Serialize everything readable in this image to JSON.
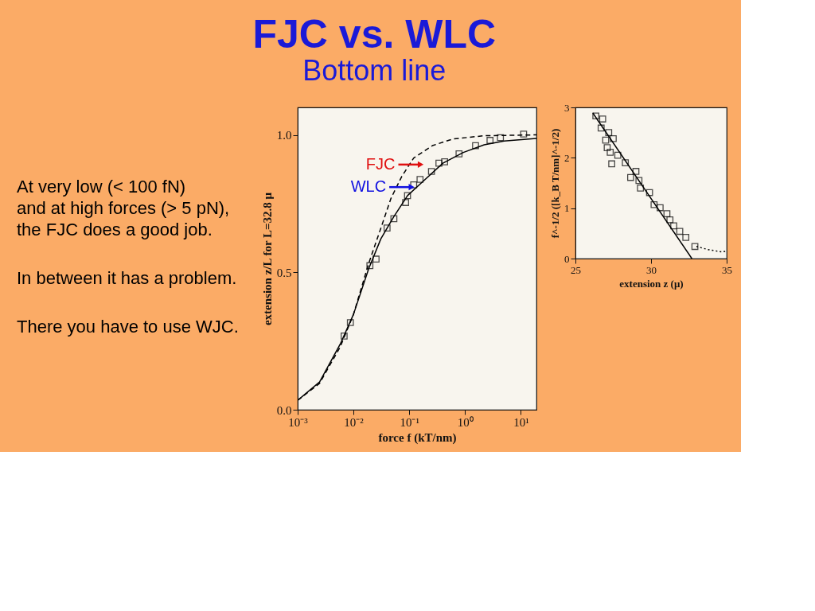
{
  "chart_data": [
    {
      "type": "scatter",
      "title": "FJC vs. WLC",
      "subtitle": "Bottom line",
      "xlabel": "force f (kT/nm)",
      "ylabel": "extension z/L  for  L=32.8 μ",
      "log": "x",
      "xlim": [
        0.001,
        19
      ],
      "xticks": [
        {
          "value": 0.001,
          "label": "10⁻³"
        },
        {
          "value": 0.01,
          "label": "10⁻²"
        },
        {
          "value": 0.1,
          "label": "10⁻¹"
        },
        {
          "value": 1,
          "label": "10⁰"
        },
        {
          "value": 10,
          "label": "10¹"
        }
      ],
      "ylim": [
        0,
        1.1
      ],
      "yticks": [
        {
          "value": 0,
          "label": "0.0"
        },
        {
          "value": 0.5,
          "label": "0.5"
        },
        {
          "value": 1,
          "label": "1.0"
        }
      ],
      "annotations": [
        "At very low (< 100 fN)\nand at high forces (> 5 pN),\nthe FJC does a good job.",
        "In between it has a problem.",
        "There you have to use WJC.",
        {
          "text": "FJC",
          "x": 0.16,
          "y": 0.892
        },
        {
          "text": "WLC",
          "x": 0.11,
          "y": 0.81
        }
      ],
      "series": [
        {
          "marker": "square",
          "color": "#000000",
          "x": [
            0.0068,
            0.0088,
            0.0197,
            0.0254,
            0.04,
            0.053,
            0.086,
            0.093,
            0.12,
            0.156,
            0.25,
            0.34,
            0.43,
            0.78,
            1.54,
            2.8,
            4.3,
            11.2
          ],
          "values": [
            0.268,
            0.317,
            0.524,
            0.548,
            0.661,
            0.695,
            0.754,
            0.779,
            0.818,
            0.838,
            0.867,
            0.897,
            0.902,
            0.931,
            0.961,
            0.98,
            0.99,
            1.003
          ]
        },
        {
          "type": "line",
          "line_style": "solid",
          "color": "#000000",
          "x": [
            0.001,
            0.00247,
            0.0058,
            0.01,
            0.0188,
            0.031,
            0.052,
            0.093,
            0.17,
            0.4,
            0.93,
            2.2,
            5.0,
            19
          ],
          "values": [
            0.034,
            0.101,
            0.239,
            0.347,
            0.514,
            0.622,
            0.7,
            0.779,
            0.828,
            0.897,
            0.936,
            0.964,
            0.978,
            0.987
          ]
        },
        {
          "type": "line",
          "line_style": "dashed",
          "color": "#000000",
          "x": [
            0.001,
            0.00247,
            0.0058,
            0.01,
            0.0188,
            0.031,
            0.047,
            0.073,
            0.12,
            0.26,
            0.6,
            2.2,
            19
          ],
          "values": [
            0.034,
            0.096,
            0.229,
            0.347,
            0.533,
            0.661,
            0.769,
            0.848,
            0.916,
            0.961,
            0.985,
            0.997,
            1.0
          ]
        }
      ]
    },
    {
      "type": "scatter",
      "xlabel": "extension z  (μ)",
      "ylabel": "f^-1/2  ([k_B T/nm]^-1/2)",
      "xlim": [
        25,
        35
      ],
      "xticks": [
        25,
        30,
        35
      ],
      "ylim": [
        0,
        3
      ],
      "yticks": [
        0,
        1,
        2,
        3
      ],
      "series": [
        {
          "marker": "square",
          "color": "#000000",
          "x": [
            26.35,
            26.8,
            26.7,
            27.2,
            27.0,
            27.5,
            27.1,
            27.3,
            27.8,
            27.4,
            28.3,
            29.0,
            28.65,
            29.2,
            29.3,
            29.9,
            30.2,
            30.6,
            31.05,
            31.25,
            31.5,
            31.9,
            32.3,
            32.9
          ],
          "values": [
            2.83,
            2.77,
            2.59,
            2.5,
            2.35,
            2.38,
            2.2,
            2.11,
            2.05,
            1.88,
            1.9,
            1.73,
            1.61,
            1.55,
            1.4,
            1.31,
            1.07,
            1.01,
            0.89,
            0.77,
            0.65,
            0.54,
            0.42,
            0.24
          ]
        },
        {
          "type": "line",
          "line_style": "solid",
          "color": "#000000",
          "x": [
            26.15,
            32.7
          ],
          "values": [
            2.89,
            0.0
          ]
        },
        {
          "type": "line",
          "line_style": "dotted",
          "color": "#000000",
          "x": [
            33.0,
            33.75,
            34.7,
            35.0
          ],
          "values": [
            0.24,
            0.18,
            0.13,
            0.15
          ]
        }
      ]
    }
  ]
}
